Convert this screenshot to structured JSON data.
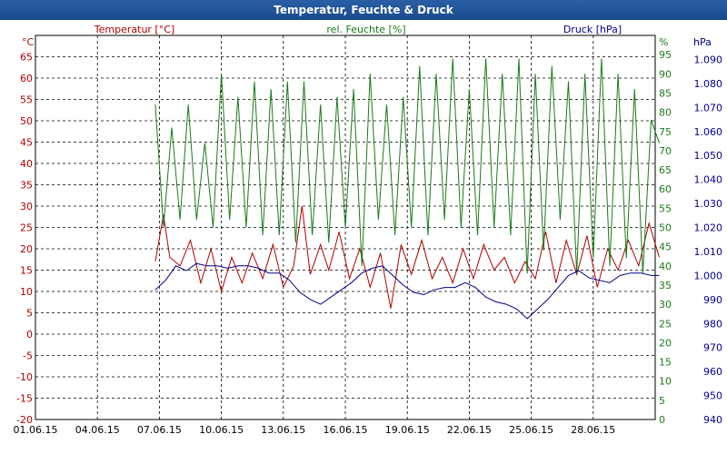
{
  "window": {
    "title": "Temperatur, Feuchte & Druck"
  },
  "colors": {
    "temperature": "#b00000",
    "humidity": "#1a7a1a",
    "pressure": "#00008b"
  },
  "chart_data": {
    "type": "line",
    "title": "Temperatur, Feuchte & Druck",
    "grid": true,
    "x_ticks": [
      "01.06.15",
      "04.06.15",
      "07.06.15",
      "10.06.15",
      "13.06.15",
      "16.06.15",
      "19.06.15",
      "22.06.15",
      "25.06.15",
      "28.06.15"
    ],
    "x_range_days": [
      0,
      30
    ],
    "axes": {
      "temperature": {
        "label": "Temperatur [°C]",
        "unit": "°C",
        "range": [
          -20,
          70
        ],
        "ticks": [
          "65",
          "60",
          "55",
          "50",
          "45",
          "40",
          "35",
          "30",
          "25",
          "20",
          "15",
          "10",
          "5",
          "0",
          "-5",
          "-10",
          "-15",
          "-20"
        ]
      },
      "humidity": {
        "label": "rel. Feuchte [%]",
        "unit": "%",
        "range": [
          0,
          100
        ],
        "ticks": [
          "95",
          "90",
          "85",
          "80",
          "75",
          "70",
          "65",
          "60",
          "55",
          "50",
          "45",
          "40",
          "35",
          "30",
          "25",
          "20",
          "15",
          "10",
          "5",
          "0"
        ]
      },
      "pressure": {
        "label": "Druck [hPa]",
        "unit": "hPa",
        "range": [
          940,
          1100
        ],
        "ticks": [
          "1.090",
          "1.080",
          "1.070",
          "1.060",
          "1.050",
          "1.040",
          "1.030",
          "1.020",
          "1.010",
          "1.000",
          "990",
          "980",
          "970",
          "960",
          "950",
          "940"
        ]
      }
    },
    "series": [
      {
        "name": "Temperatur [°C]",
        "axis": "temperature",
        "x_days": [
          5.8,
          6.2,
          6.5,
          7.0,
          7.5,
          8.0,
          8.5,
          9.0,
          9.5,
          10.0,
          10.5,
          11.0,
          11.5,
          12.0,
          12.5,
          12.9,
          13.3,
          13.8,
          14.2,
          14.7,
          15.2,
          15.7,
          16.2,
          16.7,
          17.2,
          17.7,
          18.2,
          18.7,
          19.2,
          19.7,
          20.2,
          20.7,
          21.2,
          21.7,
          22.2,
          22.7,
          23.2,
          23.7,
          24.2,
          24.7,
          25.2,
          25.7,
          26.2,
          26.7,
          27.2,
          27.7,
          28.2,
          28.7,
          29.2,
          29.7,
          30.2
        ],
        "values": [
          17,
          28,
          18,
          16,
          22,
          12,
          20,
          10,
          18,
          12,
          19,
          13,
          21,
          11,
          16,
          30,
          14,
          21,
          15,
          24,
          13,
          20,
          11,
          19,
          6,
          21,
          14,
          22,
          13,
          18,
          12,
          20,
          13,
          21,
          15,
          18,
          12,
          17,
          13,
          24,
          12,
          22,
          14,
          23,
          11,
          20,
          15,
          22,
          16,
          26,
          18
        ]
      },
      {
        "name": "rel. Feuchte [%]",
        "axis": "humidity",
        "x_days": [
          5.8,
          6.2,
          6.6,
          7.0,
          7.4,
          7.8,
          8.2,
          8.6,
          9.0,
          9.4,
          9.8,
          10.2,
          10.6,
          11.0,
          11.4,
          11.8,
          12.2,
          12.6,
          13.0,
          13.4,
          13.8,
          14.2,
          14.6,
          15.0,
          15.4,
          15.8,
          16.2,
          16.6,
          17.0,
          17.4,
          17.8,
          18.2,
          18.6,
          19.0,
          19.4,
          19.8,
          20.2,
          20.6,
          21.0,
          21.4,
          21.8,
          22.2,
          22.6,
          23.0,
          23.4,
          23.8,
          24.2,
          24.6,
          25.0,
          25.4,
          25.8,
          26.2,
          26.6,
          27.0,
          27.4,
          27.8,
          28.2,
          28.6,
          29.0,
          29.4,
          29.8,
          30.2
        ],
        "values": [
          82,
          50,
          76,
          52,
          82,
          52,
          72,
          50,
          90,
          52,
          84,
          50,
          88,
          48,
          86,
          48,
          88,
          46,
          88,
          48,
          82,
          46,
          84,
          50,
          86,
          40,
          90,
          52,
          82,
          48,
          84,
          50,
          92,
          48,
          90,
          52,
          94,
          50,
          86,
          48,
          94,
          50,
          90,
          48,
          94,
          38,
          90,
          44,
          92,
          52,
          88,
          38,
          90,
          42,
          94,
          40,
          90,
          42,
          86,
          38,
          78,
          72
        ]
      },
      {
        "name": "Druck [hPa]",
        "axis": "pressure",
        "x_days": [
          5.8,
          6.3,
          6.8,
          7.3,
          7.8,
          8.3,
          8.8,
          9.3,
          9.8,
          10.3,
          10.8,
          11.3,
          11.8,
          12.3,
          12.8,
          13.3,
          13.8,
          14.3,
          14.8,
          15.3,
          15.8,
          16.3,
          16.8,
          17.3,
          17.8,
          18.3,
          18.8,
          19.3,
          19.8,
          20.3,
          20.8,
          21.3,
          21.8,
          22.3,
          22.8,
          23.3,
          23.8,
          24.3,
          24.8,
          25.3,
          25.8,
          26.3,
          26.8,
          27.3,
          27.8,
          28.3,
          28.8,
          29.3,
          29.8,
          30.2
        ],
        "values": [
          994,
          998,
          1004,
          1002,
          1005,
          1004,
          1004,
          1003,
          1004,
          1004,
          1003,
          1001,
          1001,
          998,
          993,
          990,
          988,
          991,
          994,
          997,
          1001,
          1003,
          1004,
          1000,
          996,
          993,
          992,
          994,
          995,
          995,
          997,
          995,
          991,
          989,
          988,
          986,
          982,
          986,
          990,
          995,
          1000,
          1002,
          999,
          998,
          997,
          1000,
          1001,
          1001,
          1000,
          1000
        ]
      }
    ]
  }
}
